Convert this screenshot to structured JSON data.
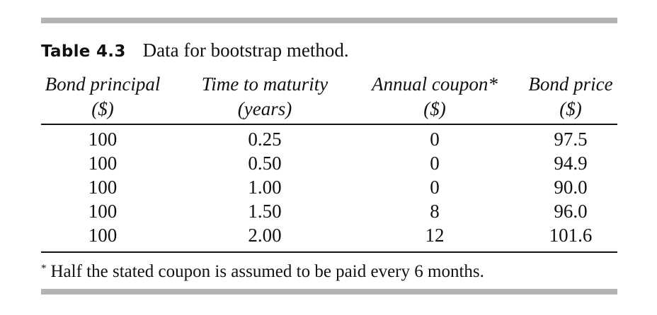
{
  "table": {
    "label": "Table 4.3",
    "title": "Data for bootstrap method.",
    "columns": [
      {
        "line1": "Bond principal",
        "line2": "($)"
      },
      {
        "line1": "Time to maturity",
        "line2": "(years)"
      },
      {
        "line1": "Annual coupon*",
        "line2": "($)"
      },
      {
        "line1": "Bond price",
        "line2": "($)"
      }
    ],
    "rows": [
      [
        "100",
        "0.25",
        "0",
        "97.5"
      ],
      [
        "100",
        "0.50",
        "0",
        "94.9"
      ],
      [
        "100",
        "1.00",
        "0",
        "90.0"
      ],
      [
        "100",
        "1.50",
        "8",
        "96.0"
      ],
      [
        "100",
        "2.00",
        "12",
        "101.6"
      ]
    ],
    "footnote": {
      "marker": "*",
      "text": "Half the stated coupon is assumed to be paid every 6 months."
    }
  }
}
